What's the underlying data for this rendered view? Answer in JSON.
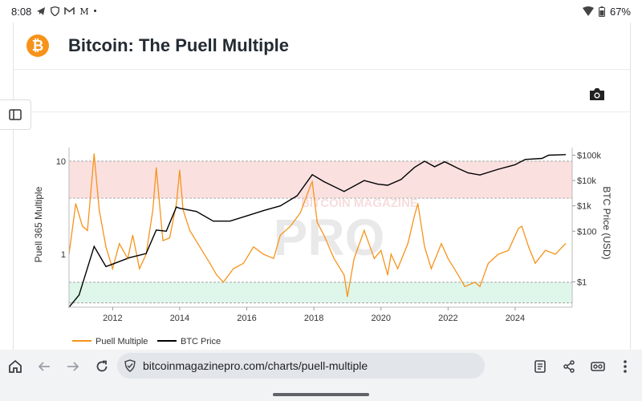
{
  "status": {
    "time": "8:08",
    "notif_m": "M",
    "battery": "67%"
  },
  "header": {
    "title": "Bitcoin: The Puell Multiple",
    "logo_symbol": "₿"
  },
  "browser": {
    "url": "bitcoinmagazinepro.com/charts/puell-multiple"
  },
  "watermark": {
    "line1": "BITCOIN MAGAZINE",
    "line2": "PRO"
  },
  "colors": {
    "puell": "#f7931a",
    "price": "#000000",
    "red_band": "#fbe0e0",
    "green_band": "#dff7ea",
    "accent": "#f7931a"
  },
  "chart_data": {
    "type": "line",
    "title": "Bitcoin: The Puell Multiple",
    "ylabel": "Puell 365 Multiple",
    "y2label": "BTC Price (USD)",
    "y_scale": "log",
    "y_ticks": [
      {
        "value": 1,
        "label": "1"
      },
      {
        "value": 10,
        "label": "10"
      }
    ],
    "y2_ticks": [
      {
        "value": 1,
        "label": "$1"
      },
      {
        "value": 100,
        "label": "$100"
      },
      {
        "value": 1000,
        "label": "$1k"
      },
      {
        "value": 10000,
        "label": "$10k"
      },
      {
        "value": 100000,
        "label": "$100k"
      }
    ],
    "x_ticks": [
      "2012",
      "2014",
      "2016",
      "2018",
      "2020",
      "2022",
      "2024"
    ],
    "x_range": [
      2010.7,
      2025.7
    ],
    "ylim": [
      0.27,
      14
    ],
    "y2lim": [
      0.1,
      200000
    ],
    "bands": [
      {
        "name": "top",
        "from": 4,
        "to": 10
      },
      {
        "name": "bottom",
        "from": 0.3,
        "to": 0.5
      }
    ],
    "legend": [
      "Puell Multiple",
      "BTC Price"
    ],
    "series": [
      {
        "name": "Puell Multiple",
        "x": [
          2010.7,
          2010.9,
          2011.1,
          2011.25,
          2011.45,
          2011.6,
          2011.8,
          2012.0,
          2012.2,
          2012.45,
          2012.6,
          2012.8,
          2013.0,
          2013.2,
          2013.3,
          2013.5,
          2013.7,
          2013.9,
          2014.0,
          2014.1,
          2014.3,
          2014.6,
          2014.9,
          2015.1,
          2015.3,
          2015.6,
          2015.9,
          2016.2,
          2016.5,
          2016.8,
          2017.0,
          2017.3,
          2017.6,
          2017.9,
          2017.95,
          2018.1,
          2018.3,
          2018.6,
          2018.9,
          2019.0,
          2019.2,
          2019.5,
          2019.8,
          2020.0,
          2020.2,
          2020.3,
          2020.5,
          2020.8,
          2021.0,
          2021.1,
          2021.3,
          2021.5,
          2021.8,
          2022.0,
          2022.3,
          2022.5,
          2022.8,
          2022.95,
          2023.2,
          2023.5,
          2023.8,
          2024.1,
          2024.2,
          2024.4,
          2024.6,
          2024.9,
          2025.2,
          2025.5
        ],
        "values": [
          1.0,
          3.5,
          2.0,
          1.8,
          12.0,
          3.0,
          1.2,
          0.7,
          1.3,
          0.9,
          1.6,
          0.7,
          1.0,
          3.0,
          8.5,
          1.4,
          1.5,
          3.5,
          8.0,
          3.0,
          1.8,
          1.2,
          0.8,
          0.6,
          0.5,
          0.7,
          0.8,
          1.2,
          1.0,
          0.9,
          1.6,
          2.0,
          2.8,
          5.5,
          6.0,
          2.2,
          1.6,
          0.9,
          0.6,
          0.35,
          0.9,
          1.8,
          0.9,
          1.1,
          0.6,
          1.0,
          0.7,
          1.3,
          2.6,
          3.5,
          1.2,
          0.7,
          1.3,
          0.9,
          0.6,
          0.45,
          0.5,
          0.45,
          0.8,
          1.0,
          1.1,
          1.9,
          2.0,
          1.2,
          0.8,
          1.1,
          1.0,
          1.3
        ]
      },
      {
        "name": "BTC Price",
        "x": [
          2010.7,
          2011.0,
          2011.45,
          2011.8,
          2012.0,
          2012.5,
          2013.0,
          2013.3,
          2013.6,
          2013.9,
          2014.0,
          2014.5,
          2015.0,
          2015.5,
          2016.0,
          2016.5,
          2017.0,
          2017.5,
          2017.95,
          2018.3,
          2018.9,
          2019.5,
          2019.9,
          2020.2,
          2020.6,
          2021.0,
          2021.3,
          2021.6,
          2021.9,
          2022.3,
          2022.6,
          2022.95,
          2023.5,
          2024.0,
          2024.3,
          2024.8,
          2025.0,
          2025.5
        ],
        "values": [
          0.1,
          0.3,
          25,
          4,
          5,
          9,
          13,
          110,
          100,
          900,
          800,
          600,
          250,
          250,
          400,
          650,
          1000,
          2500,
          17000,
          9000,
          3700,
          10000,
          7200,
          6500,
          11000,
          33000,
          58000,
          35000,
          55000,
          30000,
          20000,
          16500,
          28000,
          42000,
          68000,
          75000,
          100000,
          105000
        ]
      }
    ]
  }
}
